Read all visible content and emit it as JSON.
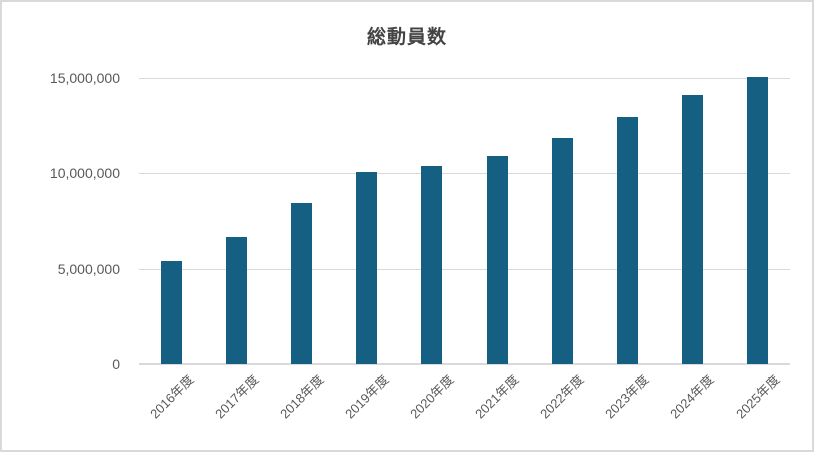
{
  "chart_data": {
    "type": "bar",
    "title": "総動員数",
    "categories": [
      "2016年度",
      "2017年度",
      "2018年度",
      "2019年度",
      "2020年度",
      "2021年度",
      "2022年度",
      "2023年度",
      "2024年度",
      "2025年度"
    ],
    "values": [
      5400000,
      6650000,
      8450000,
      10050000,
      10400000,
      10900000,
      11850000,
      12950000,
      14100000,
      15050000
    ],
    "xlabel": "",
    "ylabel": "",
    "ylim": [
      0,
      15000000
    ],
    "ytick_interval": 5000000,
    "yticks": [
      {
        "value": 15000000,
        "label": "15,000,000"
      },
      {
        "value": 10000000,
        "label": "10,000,000"
      },
      {
        "value": 5000000,
        "label": "5,000,000"
      },
      {
        "value": 0,
        "label": "0"
      }
    ],
    "grid": true,
    "legend": false,
    "x_labels_rotated_deg": 45,
    "colors": {
      "bar": "#156082",
      "gridline": "#d9d9d9",
      "axis_line": "#d9d9d9",
      "tick_label": "#595959",
      "title": "#444444",
      "chart_border": "#d9d9d9",
      "background": "#ffffff"
    }
  }
}
